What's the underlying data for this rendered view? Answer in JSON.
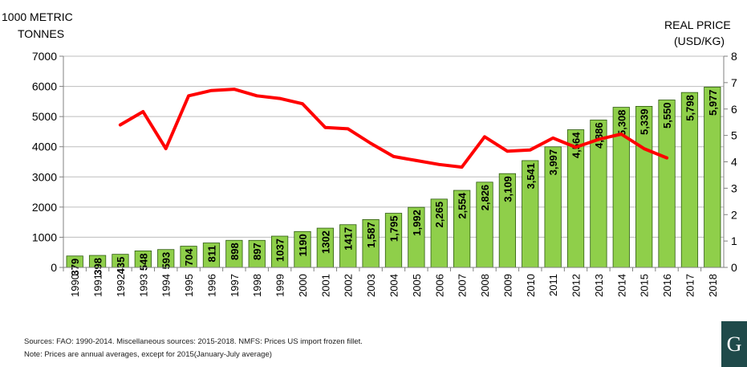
{
  "chart_data": {
    "type": "bar",
    "title": "",
    "xlabel": "",
    "ylabel_left": [
      "1000 METRIC",
      "TONNES"
    ],
    "ylabel_right": [
      "REAL PRICE",
      "(USD/KG)"
    ],
    "ylim_left": [
      0,
      7000
    ],
    "yticks_left": [
      0,
      1000,
      2000,
      3000,
      4000,
      5000,
      6000,
      7000
    ],
    "ylim_right": [
      0,
      8
    ],
    "yticks_right": [
      0,
      1,
      2,
      3,
      4,
      5,
      6,
      7,
      8
    ],
    "grid": true,
    "categories": [
      "1990",
      "1991",
      "1992",
      "1993",
      "1994",
      "1995",
      "1996",
      "1997",
      "1998",
      "1999",
      "2000",
      "2001",
      "2002",
      "2003",
      "2004",
      "2005",
      "2006",
      "2007",
      "2008",
      "2009",
      "2010",
      "2011",
      "2012",
      "2013",
      "2014",
      "2015",
      "2016",
      "2017",
      "2018"
    ],
    "series": [
      {
        "type": "bar",
        "axis": "left",
        "color": "#8fcf4a",
        "values": [
          379,
          398,
          435,
          548,
          593,
          704,
          811,
          898,
          897,
          1037,
          1190,
          1302,
          1417,
          1587,
          1795,
          1992,
          2265,
          2554,
          2826,
          3109,
          3541,
          3997,
          4564,
          4886,
          5308,
          5339,
          5550,
          5798,
          5977
        ],
        "labels": [
          "379",
          "398",
          "435",
          "548",
          "593",
          "704",
          "811",
          "898",
          "897",
          "1037",
          "1190",
          "1302",
          "1417",
          "1,587",
          "1,795",
          "1,992",
          "2,265",
          "2,554",
          "2,826",
          "3,109",
          "3,541",
          "3,997",
          "4,564",
          "4,886",
          "5,308",
          "5,339",
          "5,550",
          "5,798",
          "5,977"
        ]
      },
      {
        "type": "line",
        "axis": "right",
        "color": "#ff0000",
        "values": [
          null,
          null,
          5.4,
          5.9,
          4.5,
          6.5,
          6.7,
          6.75,
          6.5,
          6.4,
          6.2,
          5.3,
          5.25,
          4.7,
          4.2,
          4.05,
          3.9,
          3.8,
          4.95,
          4.4,
          4.45,
          4.9,
          4.55,
          4.85,
          5.05,
          4.5,
          4.15,
          null,
          null
        ]
      }
    ]
  },
  "notes": {
    "line1": "Sources: FAO: 1990-2014. Miscellaneous sources: 2015-2018. NMFS: Prices US import frozen  fillet.",
    "line2": "Note: Prices are  annual averages, except for 2015(January-July average)"
  },
  "logo": {
    "letter": "G"
  },
  "colors": {
    "bar": "#8fcf4a",
    "bar_stroke": "#2e5a10",
    "line": "#ff0000",
    "grid": "#bdbdbd",
    "plot_border": "#9e9e9e",
    "logo_bg": "#1f4a4a"
  }
}
